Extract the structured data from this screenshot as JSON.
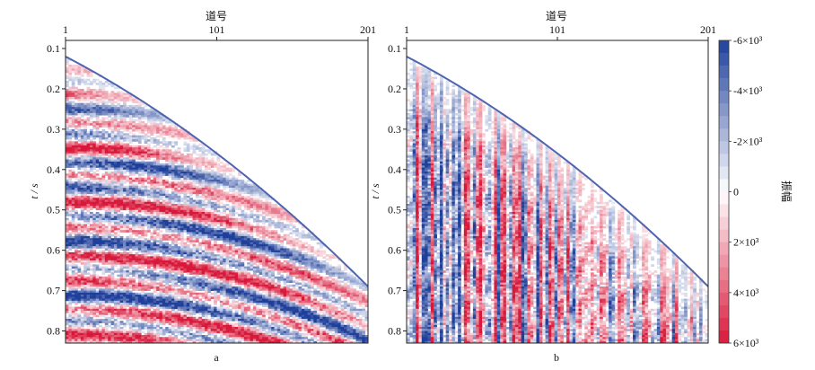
{
  "chart_data": [
    {
      "type": "heatmap",
      "panel_label": "a",
      "xlabel_top": "道号",
      "ylabel": "t / s",
      "x_ticks": [
        "1",
        "101",
        "201"
      ],
      "x_range": [
        1,
        201
      ],
      "y_ticks": [
        "0.1",
        "0.2",
        "0.3",
        "0.4",
        "0.5",
        "0.6",
        "0.7",
        "0.8"
      ],
      "y_range": [
        0.08,
        0.83
      ],
      "first_arrival": {
        "trace": [
          1,
          101,
          201
        ],
        "t": [
          0.12,
          0.36,
          0.69
        ]
      },
      "description_kind": "continuous reflections"
    },
    {
      "type": "heatmap",
      "panel_label": "b",
      "xlabel_top": "道号",
      "ylabel": "t / s",
      "x_ticks": [
        "1",
        "101",
        "201"
      ],
      "x_range": [
        1,
        201
      ],
      "y_ticks": [
        "0.1",
        "0.2",
        "0.3",
        "0.4",
        "0.5",
        "0.6",
        "0.7",
        "0.8"
      ],
      "y_range": [
        0.08,
        0.83
      ],
      "first_arrival": {
        "trace": [
          1,
          101,
          201
        ],
        "t": [
          0.12,
          0.36,
          0.69
        ]
      },
      "description_kind": "trace-wise vertical striping"
    }
  ],
  "colorbar": {
    "label": "振幅",
    "ticks": [
      "-6×10³",
      "-4×10³",
      "-2×10³",
      "0",
      "2×10³",
      "4×10³",
      "6×10³"
    ],
    "values": [
      -6000,
      -4000,
      -2000,
      0,
      2000,
      4000,
      6000
    ],
    "colors": {
      "negative": "#1f3f9a",
      "zero": "#ffffff",
      "positive": "#d8183a"
    }
  }
}
